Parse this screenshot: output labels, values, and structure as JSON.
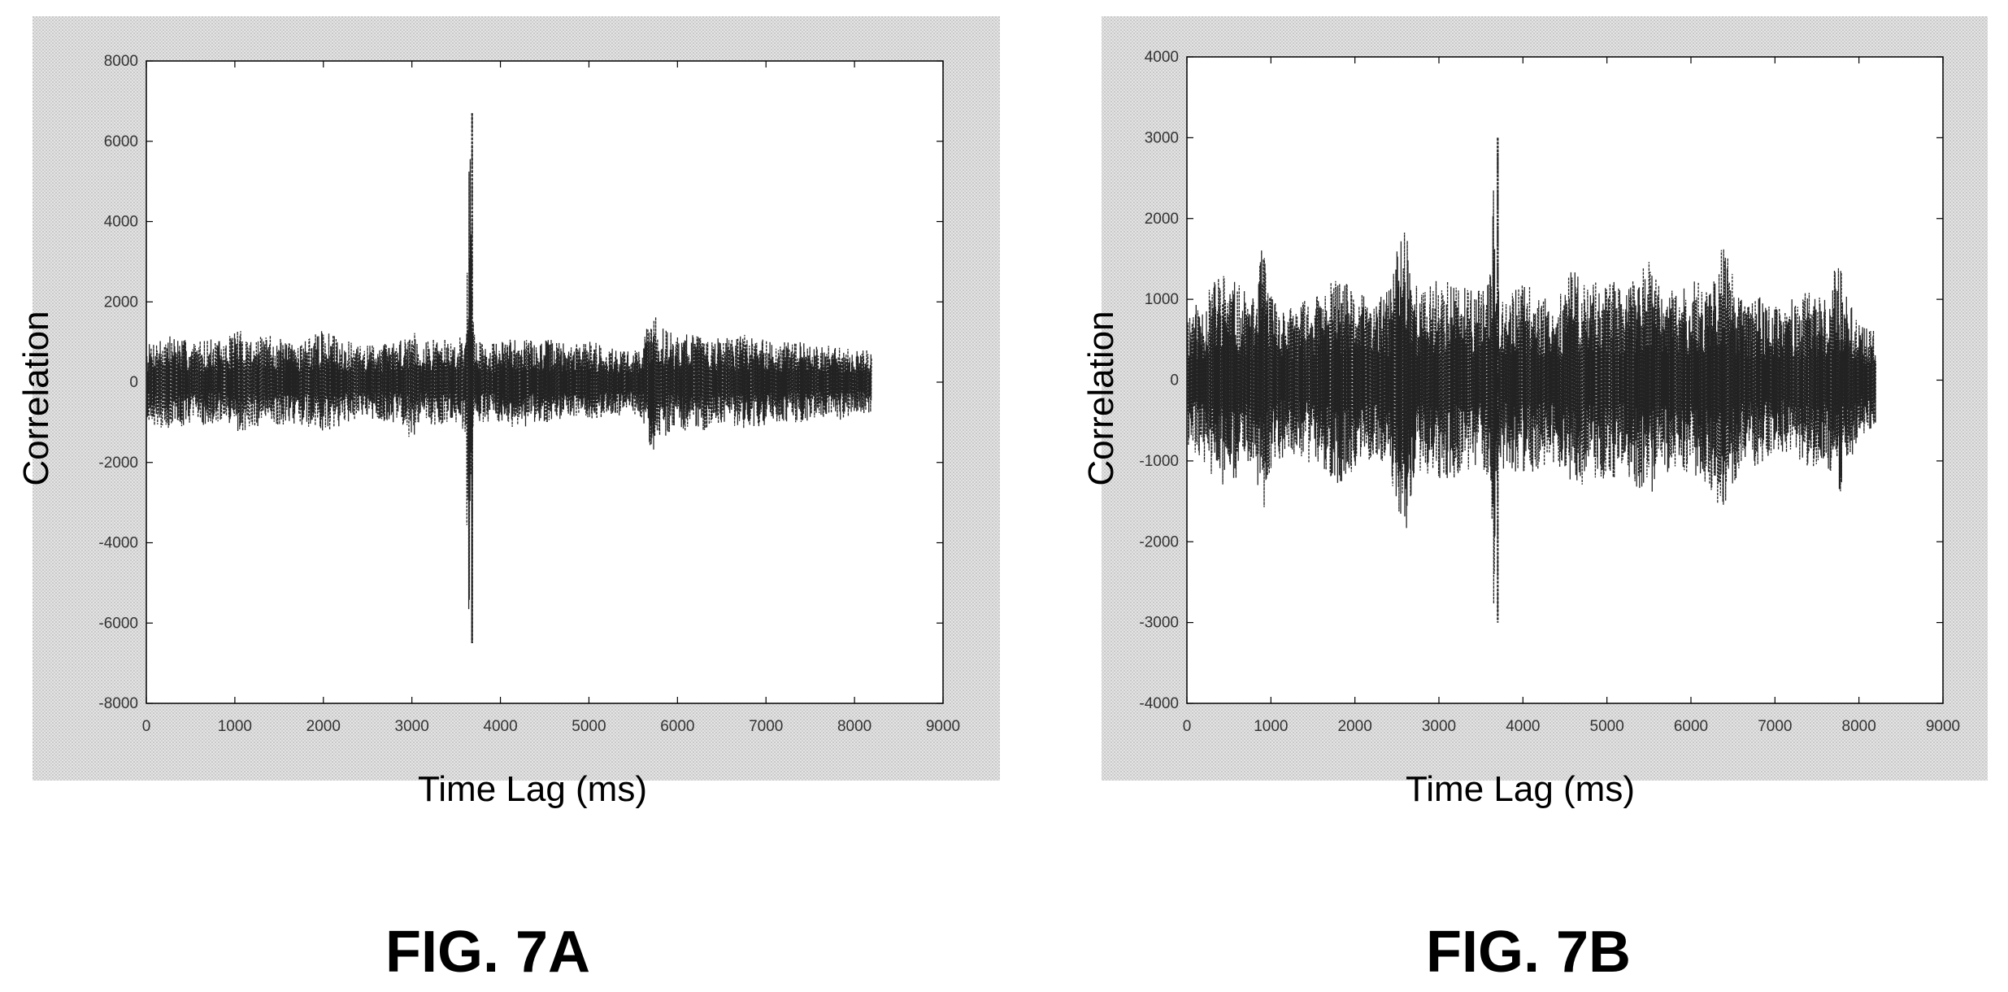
{
  "chart_data": [
    {
      "id": "A",
      "type": "line",
      "title": "",
      "xlabel": "Time Lag (ms)",
      "ylabel": "Correlation",
      "xlim": [
        0,
        9000
      ],
      "ylim": [
        -8000,
        8000
      ],
      "xticks": [
        "0",
        "1000",
        "2000",
        "3000",
        "4000",
        "5000",
        "6000",
        "7000",
        "8000",
        "9000"
      ],
      "yticks": [
        "8000",
        "6000",
        "4000",
        "2000",
        "0",
        "-2000",
        "-4000",
        "-6000",
        "-8000"
      ],
      "grid": false,
      "line_color": "#222222",
      "series": [
        {
          "envelope_x": [
            0,
            100,
            300,
            500,
            700,
            900,
            1000,
            1200,
            1400,
            1600,
            1800,
            2000,
            2200,
            2400,
            2600,
            2800,
            2900,
            3000,
            3100,
            3300,
            3500,
            3600,
            3650,
            3700,
            3750,
            3800,
            4000,
            4200,
            4400,
            4600,
            4800,
            5000,
            5200,
            5400,
            5500,
            5600,
            5700,
            5800,
            6000,
            6200,
            6400,
            6600,
            6800,
            7000,
            7200,
            7400,
            7600,
            7800,
            8000,
            8192
          ],
          "envelope_amp": [
            900,
            1100,
            1200,
            1000,
            1100,
            1000,
            1400,
            1100,
            1200,
            1000,
            1100,
            1300,
            1100,
            900,
            1000,
            1000,
            1100,
            1500,
            1000,
            1100,
            1000,
            1300,
            6700,
            1300,
            1100,
            1000,
            1000,
            1200,
            1000,
            1100,
            900,
            1100,
            900,
            800,
            800,
            900,
            1900,
            1400,
            1200,
            1300,
            1100,
            1100,
            1200,
            1100,
            1000,
            1000,
            900,
            1000,
            800,
            800
          ],
          "peak": {
            "x": 3680,
            "max": 6700,
            "min": -6500
          }
        }
      ]
    },
    {
      "id": "B",
      "type": "line",
      "title": "",
      "xlabel": "Time Lag (ms)",
      "ylabel": "Correlation",
      "xlim": [
        0,
        9000
      ],
      "ylim": [
        -4000,
        4000
      ],
      "xticks": [
        "0",
        "1000",
        "2000",
        "3000",
        "4000",
        "5000",
        "6000",
        "7000",
        "8000",
        "9000"
      ],
      "yticks": [
        "4000",
        "3000",
        "2000",
        "1000",
        "0",
        "-1000",
        "-2000",
        "-3000",
        "-4000"
      ],
      "grid": false,
      "line_color": "#222222",
      "series": [
        {
          "envelope_x": [
            0,
            200,
            400,
            600,
            800,
            900,
            1000,
            1200,
            1400,
            1600,
            1800,
            2000,
            2200,
            2400,
            2500,
            2600,
            2700,
            2800,
            3000,
            3200,
            3400,
            3600,
            3650,
            3700,
            3750,
            3800,
            4000,
            4200,
            4400,
            4600,
            4800,
            5000,
            5200,
            5400,
            5500,
            5600,
            5800,
            6000,
            6200,
            6300,
            6400,
            6600,
            6800,
            7000,
            7200,
            7400,
            7600,
            7750,
            8000,
            8200
          ],
          "envelope_amp": [
            900,
            1000,
            1400,
            1200,
            1000,
            1700,
            1100,
            900,
            1000,
            1100,
            1300,
            1100,
            1000,
            1100,
            1700,
            2100,
            1300,
            1100,
            1300,
            1200,
            1100,
            1200,
            3000,
            1300,
            1100,
            1100,
            1200,
            1100,
            1000,
            1400,
            1200,
            1300,
            1100,
            1400,
            1500,
            1200,
            1100,
            1200,
            1300,
            1500,
            1700,
            1000,
            1100,
            900,
            1000,
            1100,
            1000,
            1500,
            700,
            600
          ],
          "peak": {
            "x": 3700,
            "max": 3000,
            "min": -3000
          }
        }
      ]
    }
  ],
  "captions": {
    "a": "FIG. 7A",
    "b": "FIG. 7B"
  }
}
